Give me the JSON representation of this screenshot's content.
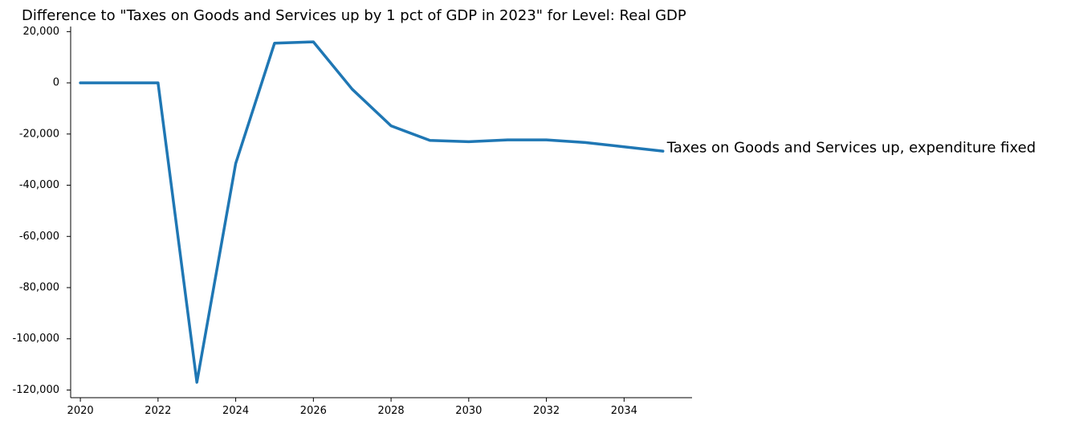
{
  "chart_data": {
    "type": "line",
    "title": "Difference to \"Taxes on Goods and Services up by 1 pct of GDP in 2023\" for Level: Real GDP",
    "xlabel": "",
    "ylabel": "",
    "xlim": [
      2019.75,
      2035.75
    ],
    "ylim": [
      -123000,
      22000
    ],
    "grid": false,
    "legend": "none",
    "x_ticks": [
      2020,
      2022,
      2024,
      2026,
      2028,
      2030,
      2032,
      2034
    ],
    "x_tick_labels": [
      "2020",
      "2022",
      "2024",
      "2026",
      "2028",
      "2030",
      "2032",
      "2034"
    ],
    "y_ticks": [
      20000,
      0,
      -20000,
      -40000,
      -60000,
      -80000,
      -100000,
      -120000
    ],
    "y_tick_labels": [
      "20,000",
      "0",
      "-20,000",
      "-40,000",
      "-60,000",
      "-80,000",
      "-100,000",
      "-120,000"
    ],
    "series": [
      {
        "name": "Taxes on Goods and Services up, expenditure fixed",
        "color": "#1f77b4",
        "x": [
          2020,
          2021,
          2022,
          2023,
          2024,
          2025,
          2026,
          2027,
          2028,
          2029,
          2030,
          2031,
          2032,
          2033,
          2034,
          2035
        ],
        "values": [
          0,
          0,
          0,
          -117000,
          -31500,
          15500,
          16000,
          -2500,
          -16800,
          -22500,
          -23000,
          -22300,
          -22300,
          -23300,
          -25000,
          -26700
        ]
      }
    ]
  }
}
